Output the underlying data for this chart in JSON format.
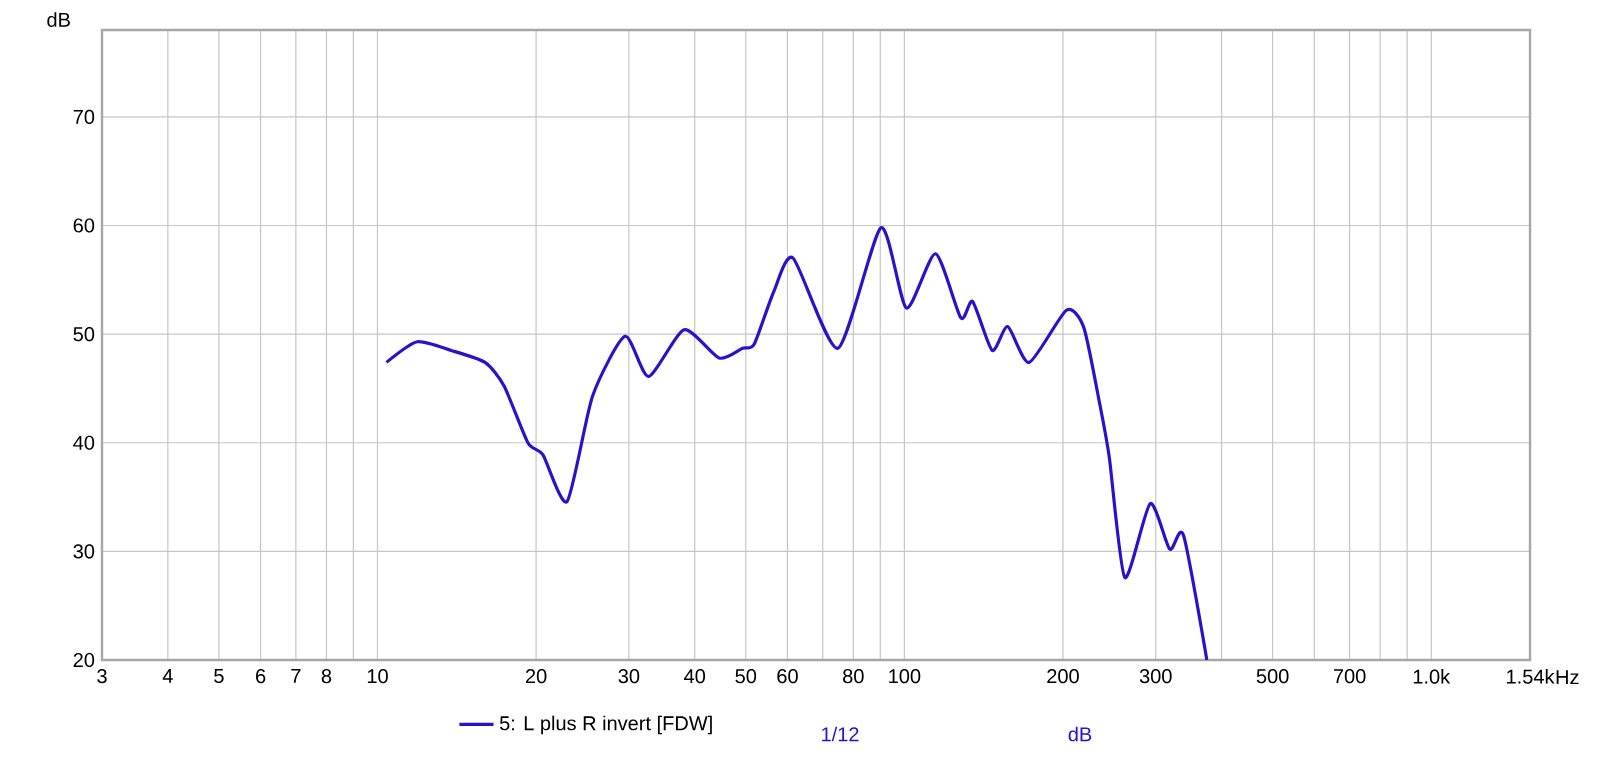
{
  "chart_data": {
    "type": "line",
    "ylabel": "dB",
    "log": "x",
    "grid": true,
    "legend": "bottom",
    "marker": "none",
    "line_style": "solid",
    "xlim": [
      3,
      1540
    ],
    "ylim": [
      20,
      78
    ],
    "xticks": [
      3,
      4,
      5,
      6,
      7,
      8,
      {
        "value": 9,
        "label": null
      },
      10,
      20,
      30,
      40,
      50,
      60,
      {
        "value": 70,
        "label": null
      },
      80,
      {
        "value": 90,
        "label": null
      },
      100,
      200,
      300,
      {
        "value": 400,
        "label": null
      },
      500,
      {
        "value": 600,
        "label": null
      },
      700,
      {
        "value": 800,
        "label": null
      },
      {
        "value": 900,
        "label": null
      },
      {
        "value": 1000,
        "label": "1.0k"
      },
      {
        "value": 1540,
        "label": "1.54k"
      }
    ],
    "xlabel": "Hz",
    "yticks": [
      20,
      30,
      40,
      50,
      60,
      70
    ],
    "annotations": [
      "1/12",
      "dB"
    ],
    "series": [
      {
        "name": "5: L plus R invert [FDW]",
        "color": "#2e10cc",
        "x": [
          10.4,
          11.9,
          13.8,
          16.0,
          17.4,
          19.3,
          20.6,
          22.9,
          25.6,
          29.5,
          32.7,
          38.2,
          44.5,
          49.3,
          51.9,
          56.5,
          61.5,
          74.8,
          90.3,
          100.9,
          114.6,
          128,
          134.8,
          146.8,
          157.1,
          172.6,
          203,
          219.1,
          234.6,
          244.8,
          262.1,
          292.9,
          319,
          338.6,
          375.1
        ],
        "values": [
          47.4,
          49.3,
          48.5,
          47.4,
          45.2,
          40.0,
          38.9,
          34.6,
          44.3,
          49.8,
          46.1,
          50.4,
          47.8,
          48.7,
          49.1,
          53.9,
          57.0,
          48.7,
          59.8,
          52.4,
          57.4,
          51.5,
          53.0,
          48.5,
          50.7,
          47.4,
          52.2,
          50.6,
          43.7,
          38.7,
          27.6,
          34.4,
          30.2,
          31.5,
          20.0
        ]
      }
    ]
  }
}
